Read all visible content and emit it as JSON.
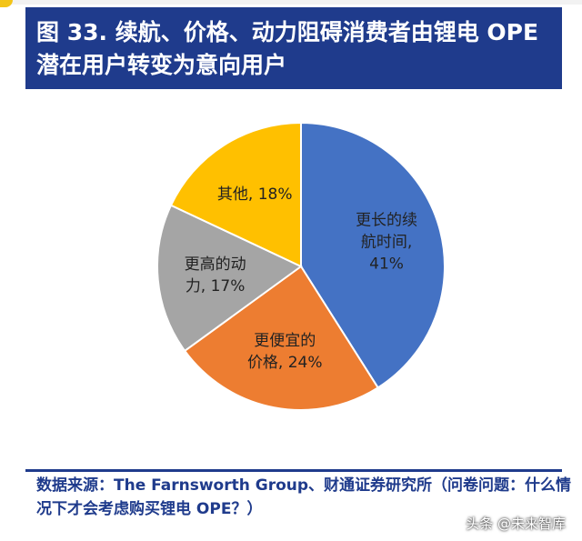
{
  "header": {
    "title": "图 33. 续航、价格、动力阻碍消费者由锂电 OPE 潜在用户转变为意向用户"
  },
  "chart_data": {
    "type": "pie",
    "title": "",
    "slices": [
      {
        "label_lines": [
          "更长的续",
          "航时间,",
          "41%"
        ],
        "value": 41,
        "color": "#4472c4"
      },
      {
        "label_lines": [
          "更便宜的",
          "价格, 24%"
        ],
        "value": 24,
        "color": "#ed7d31"
      },
      {
        "label_lines": [
          "更高的动",
          "力, 17%"
        ],
        "value": 17,
        "color": "#a5a5a5"
      },
      {
        "label_lines": [
          "其他, 18%"
        ],
        "value": 18,
        "color": "#ffc000"
      }
    ]
  },
  "footer": {
    "source": "数据来源：The Farnsworth Group、财通证券研究所（问卷问题：什么情况下才会考虑购买锂电 OPE？）",
    "watermark": "头条 @未来智库"
  }
}
